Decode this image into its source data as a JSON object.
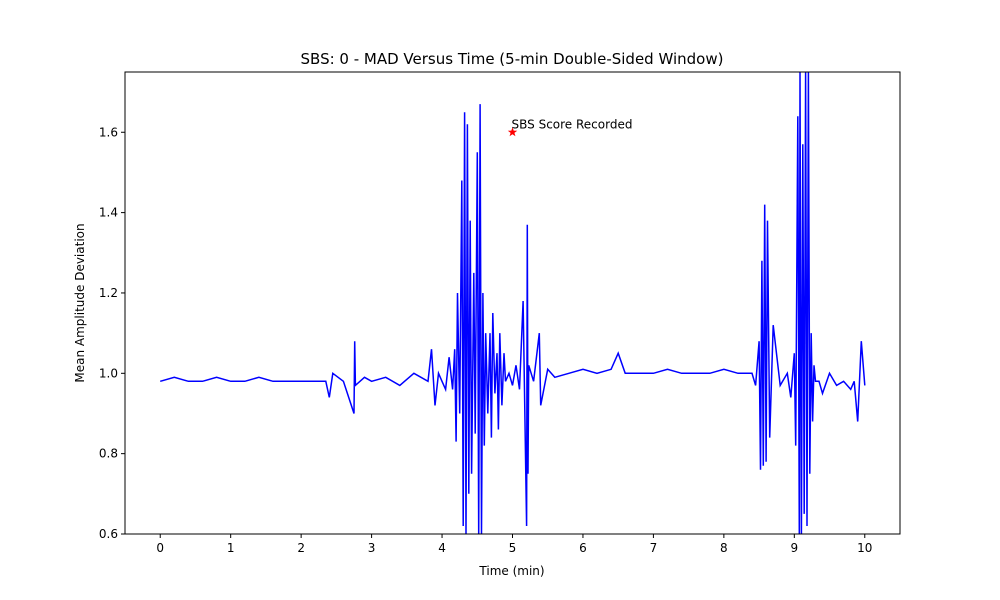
{
  "chart_data": {
    "type": "line",
    "title": "SBS: 0 - MAD Versus Time (5-min Double-Sided Window)",
    "xlabel": "Time (min)",
    "ylabel": "Mean Amplitude Deviation",
    "xlim": [
      -0.5,
      10.5
    ],
    "ylim": [
      0.6,
      1.75
    ],
    "xticks": [
      0,
      1,
      2,
      3,
      4,
      5,
      6,
      7,
      8,
      9,
      10
    ],
    "yticks": [
      0.6,
      0.8,
      1.0,
      1.2,
      1.4,
      1.6
    ],
    "xtick_labels": [
      "0",
      "1",
      "2",
      "3",
      "4",
      "5",
      "6",
      "7",
      "8",
      "9",
      "10"
    ],
    "ytick_labels": [
      "0.6",
      "0.8",
      "1.0",
      "1.2",
      "1.4",
      "1.6"
    ],
    "grid": false,
    "series": [
      {
        "color": "#0000ff",
        "x": [
          0.0,
          0.2,
          0.4,
          0.6,
          0.8,
          1.0,
          1.2,
          1.4,
          1.6,
          1.8,
          2.0,
          2.2,
          2.35,
          2.4,
          2.45,
          2.6,
          2.75,
          2.76,
          2.77,
          2.9,
          3.0,
          3.2,
          3.4,
          3.6,
          3.8,
          3.85,
          3.9,
          3.95,
          4.0,
          4.05,
          4.1,
          4.15,
          4.18,
          4.2,
          4.22,
          4.25,
          4.28,
          4.3,
          4.32,
          4.34,
          4.36,
          4.38,
          4.4,
          4.42,
          4.45,
          4.47,
          4.5,
          4.52,
          4.54,
          4.56,
          4.58,
          4.6,
          4.62,
          4.65,
          4.68,
          4.7,
          4.72,
          4.75,
          4.78,
          4.8,
          4.82,
          4.85,
          4.88,
          4.9,
          4.95,
          5.0,
          5.05,
          5.1,
          5.15,
          5.2,
          5.21,
          5.22,
          5.23,
          5.3,
          5.38,
          5.4,
          5.5,
          5.6,
          5.8,
          6.0,
          6.2,
          6.4,
          6.5,
          6.6,
          6.8,
          7.0,
          7.2,
          7.4,
          7.6,
          7.8,
          8.0,
          8.2,
          8.4,
          8.45,
          8.5,
          8.52,
          8.54,
          8.56,
          8.58,
          8.6,
          8.62,
          8.65,
          8.7,
          8.8,
          8.9,
          8.95,
          9.0,
          9.02,
          9.05,
          9.07,
          9.08,
          9.1,
          9.12,
          9.14,
          9.16,
          9.18,
          9.2,
          9.22,
          9.24,
          9.26,
          9.28,
          9.3,
          9.35,
          9.4,
          9.5,
          9.6,
          9.7,
          9.8,
          9.85,
          9.9,
          9.95,
          10.0
        ],
        "y": [
          0.98,
          0.99,
          0.98,
          0.98,
          0.99,
          0.98,
          0.98,
          0.99,
          0.98,
          0.98,
          0.98,
          0.98,
          0.98,
          0.94,
          1.0,
          0.98,
          0.9,
          1.08,
          0.97,
          0.99,
          0.98,
          0.99,
          0.97,
          1.0,
          0.98,
          1.06,
          0.92,
          1.0,
          0.98,
          0.96,
          1.04,
          0.96,
          1.06,
          0.83,
          1.2,
          0.9,
          1.48,
          0.62,
          1.65,
          0.59,
          1.62,
          0.7,
          1.38,
          0.75,
          1.25,
          0.85,
          1.55,
          0.59,
          1.67,
          0.6,
          1.2,
          0.82,
          1.1,
          0.9,
          1.1,
          0.84,
          1.15,
          0.95,
          1.05,
          0.86,
          1.1,
          0.92,
          1.05,
          0.98,
          1.0,
          0.97,
          1.02,
          0.96,
          1.18,
          0.62,
          1.37,
          0.75,
          1.02,
          0.98,
          1.1,
          0.92,
          1.01,
          0.99,
          1.0,
          1.01,
          1.0,
          1.01,
          1.05,
          1.0,
          1.0,
          1.0,
          1.01,
          1.0,
          1.0,
          1.0,
          1.01,
          1.0,
          1.0,
          0.97,
          1.08,
          0.76,
          1.28,
          0.77,
          1.42,
          0.78,
          1.38,
          0.84,
          1.12,
          0.97,
          1.0,
          0.94,
          1.05,
          0.82,
          1.64,
          0.6,
          1.75,
          0.59,
          1.57,
          0.65,
          1.75,
          0.62,
          1.75,
          0.75,
          1.1,
          0.88,
          1.02,
          0.98,
          0.98,
          0.95,
          1.0,
          0.97,
          0.98,
          0.96,
          0.98,
          0.88,
          1.08,
          0.97
        ]
      }
    ],
    "annotations": [
      {
        "x": 5.0,
        "y": 1.6,
        "marker": "star",
        "color": "#ff0000",
        "text": "SBS Score Recorded"
      }
    ]
  }
}
